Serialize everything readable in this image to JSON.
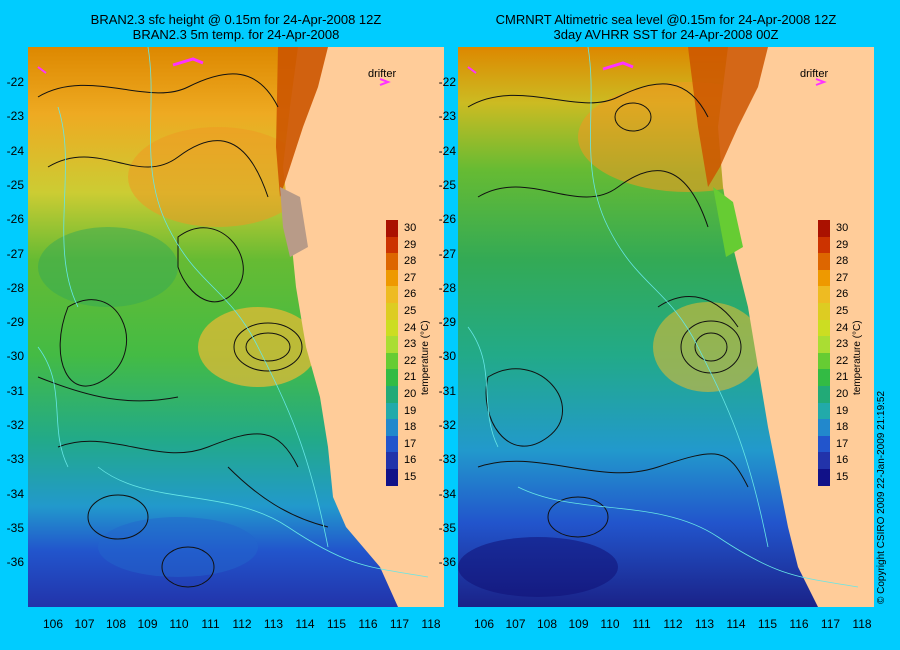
{
  "left_panel": {
    "title_line1": "BRAN2.3 sfc height @ 0.15m for 24-Apr-2008 12Z",
    "title_line2": "BRAN2.3 5m temp. for 24-Apr-2008"
  },
  "right_panel": {
    "title_line1": "CMRNRT Altimetric sea level  @0.15m  for 24-Apr-2008 12Z",
    "title_line2": "3day AVHRR SST for 24-Apr-2008 00Z"
  },
  "drifter_label": "drifter",
  "latitudes": [
    "-22",
    "-23",
    "-24",
    "-25",
    "-26",
    "-27",
    "-28",
    "-29",
    "-30",
    "-31",
    "-32",
    "-33",
    "-34",
    "-35",
    "-36"
  ],
  "longitudes": [
    "106",
    "107",
    "108",
    "109",
    "110",
    "111",
    "112",
    "113",
    "114",
    "115",
    "116",
    "117",
    "118"
  ],
  "colorbar": {
    "label": "temperature (°C)",
    "ticks": [
      "30",
      "29",
      "28",
      "27",
      "26",
      "25",
      "24",
      "23",
      "22",
      "21",
      "20",
      "19",
      "18",
      "17",
      "16",
      "15"
    ],
    "colors": [
      "#aa1100",
      "#cc3300",
      "#dd6600",
      "#ee9900",
      "#eebb22",
      "#ddcc22",
      "#ccdd22",
      "#aadd33",
      "#66cc33",
      "#33bb44",
      "#22aa77",
      "#22aaaa",
      "#2288cc",
      "#2255cc",
      "#2233aa",
      "#111188"
    ]
  },
  "copyright": "© Copyright CSIRO 2009   22-Jan-2009 21:19:52"
}
